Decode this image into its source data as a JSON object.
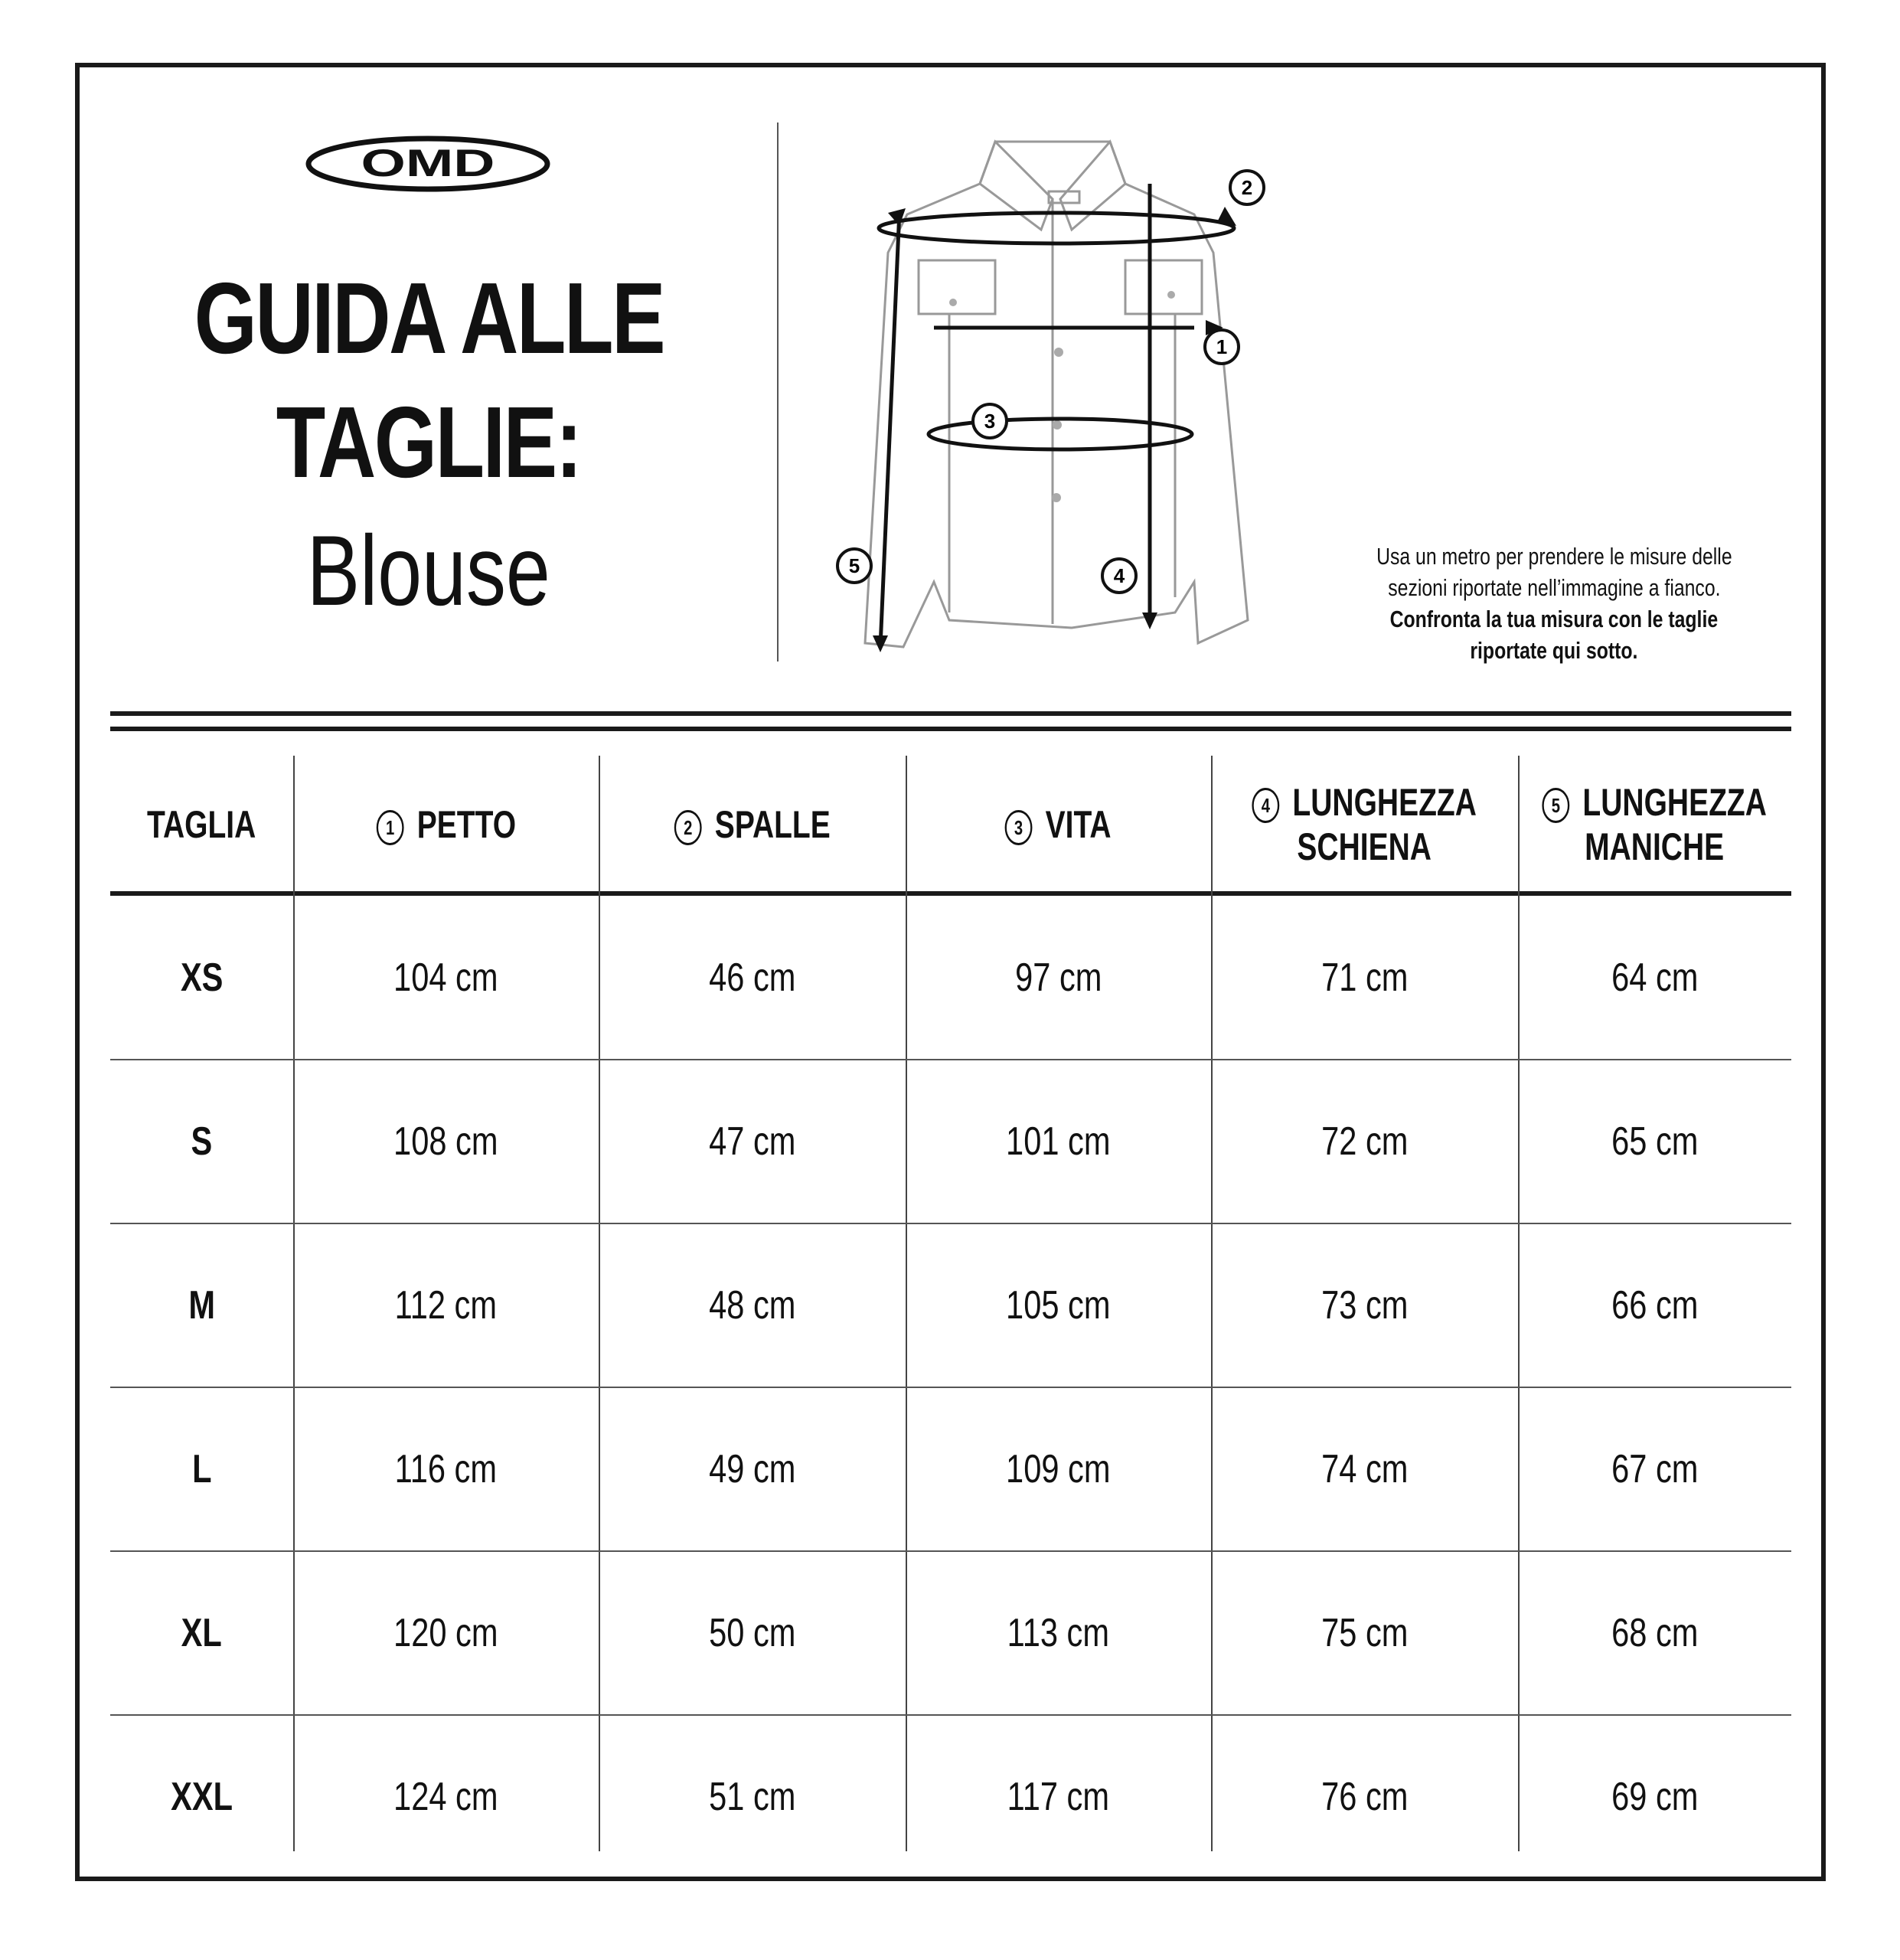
{
  "brand": {
    "logo_text": "OMD"
  },
  "header": {
    "title_line1": "GUIDA ALLE",
    "title_line2": "TAGLIE:",
    "subtitle": "Blouse"
  },
  "diagram": {
    "markers": [
      "1",
      "2",
      "3",
      "4",
      "5"
    ]
  },
  "note": {
    "line1": "Usa un metro per prendere le misure delle",
    "line2": "sezioni riportate nell’immagine a fianco.",
    "line3": "Confronta la tua misura con le taglie",
    "line4": "riportate qui sotto."
  },
  "table": {
    "columns": [
      {
        "num": "",
        "label": "TAGLIA",
        "label2": ""
      },
      {
        "num": "1",
        "label": "PETTO",
        "label2": ""
      },
      {
        "num": "2",
        "label": "SPALLE",
        "label2": ""
      },
      {
        "num": "3",
        "label": "VITA",
        "label2": ""
      },
      {
        "num": "4",
        "label": "LUNGHEZZA",
        "label2": "SCHIENA"
      },
      {
        "num": "5",
        "label": "LUNGHEZZA",
        "label2": "MANICHE"
      }
    ],
    "rows": [
      [
        "XS",
        "104 cm",
        "46 cm",
        "97 cm",
        "71 cm",
        "64 cm"
      ],
      [
        "S",
        "108 cm",
        "47 cm",
        "101 cm",
        "72 cm",
        "65 cm"
      ],
      [
        "M",
        "112 cm",
        "48 cm",
        "105 cm",
        "73 cm",
        "66 cm"
      ],
      [
        "L",
        "116 cm",
        "49 cm",
        "109 cm",
        "74 cm",
        "67 cm"
      ],
      [
        "XL",
        "120 cm",
        "50 cm",
        "113 cm",
        "75 cm",
        "68 cm"
      ],
      [
        "XXL",
        "124 cm",
        "51 cm",
        "117 cm",
        "76 cm",
        "69 cm"
      ]
    ]
  }
}
